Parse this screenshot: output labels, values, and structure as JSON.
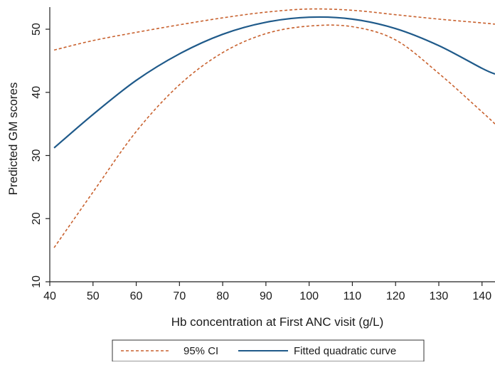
{
  "chart_data": {
    "type": "line",
    "title": "",
    "xlabel": "Hb concentration at First ANC visit (g/L)",
    "ylabel": "Predicted GM scores",
    "xlim": [
      40,
      143
    ],
    "ylim": [
      10,
      53.5
    ],
    "x_ticks": [
      40,
      50,
      60,
      70,
      80,
      90,
      100,
      110,
      120,
      130,
      140
    ],
    "y_ticks": [
      10,
      20,
      30,
      40,
      50
    ],
    "x": [
      41,
      50,
      60,
      70,
      80,
      90,
      100,
      110,
      120,
      130,
      140,
      143
    ],
    "series": [
      {
        "name": "Fitted quadratic curve",
        "style": "solid",
        "color": "#1f5a8a",
        "values": [
          31.2,
          36.5,
          41.9,
          46.1,
          49.2,
          51.1,
          51.9,
          51.6,
          50.1,
          47.4,
          43.8,
          42.9
        ]
      },
      {
        "name": "95% CI",
        "style": "dashed",
        "color": "#c8612e",
        "band": "upper",
        "values": [
          46.7,
          48.2,
          49.5,
          50.7,
          51.8,
          52.7,
          53.2,
          53.0,
          52.3,
          51.6,
          51.0,
          50.8
        ]
      },
      {
        "name": "95% CI",
        "style": "dashed",
        "color": "#c8612e",
        "band": "lower",
        "values": [
          15.4,
          24.2,
          33.8,
          41.2,
          46.3,
          49.3,
          50.5,
          50.4,
          48.3,
          43.0,
          36.9,
          35.0
        ]
      }
    ],
    "legend": {
      "placement": "bottom",
      "entries": [
        {
          "label": "95% CI",
          "style": "dashed",
          "color": "#c8612e"
        },
        {
          "label": "Fitted quadratic curve",
          "style": "solid",
          "color": "#1f5a8a"
        }
      ]
    },
    "grid": false
  }
}
